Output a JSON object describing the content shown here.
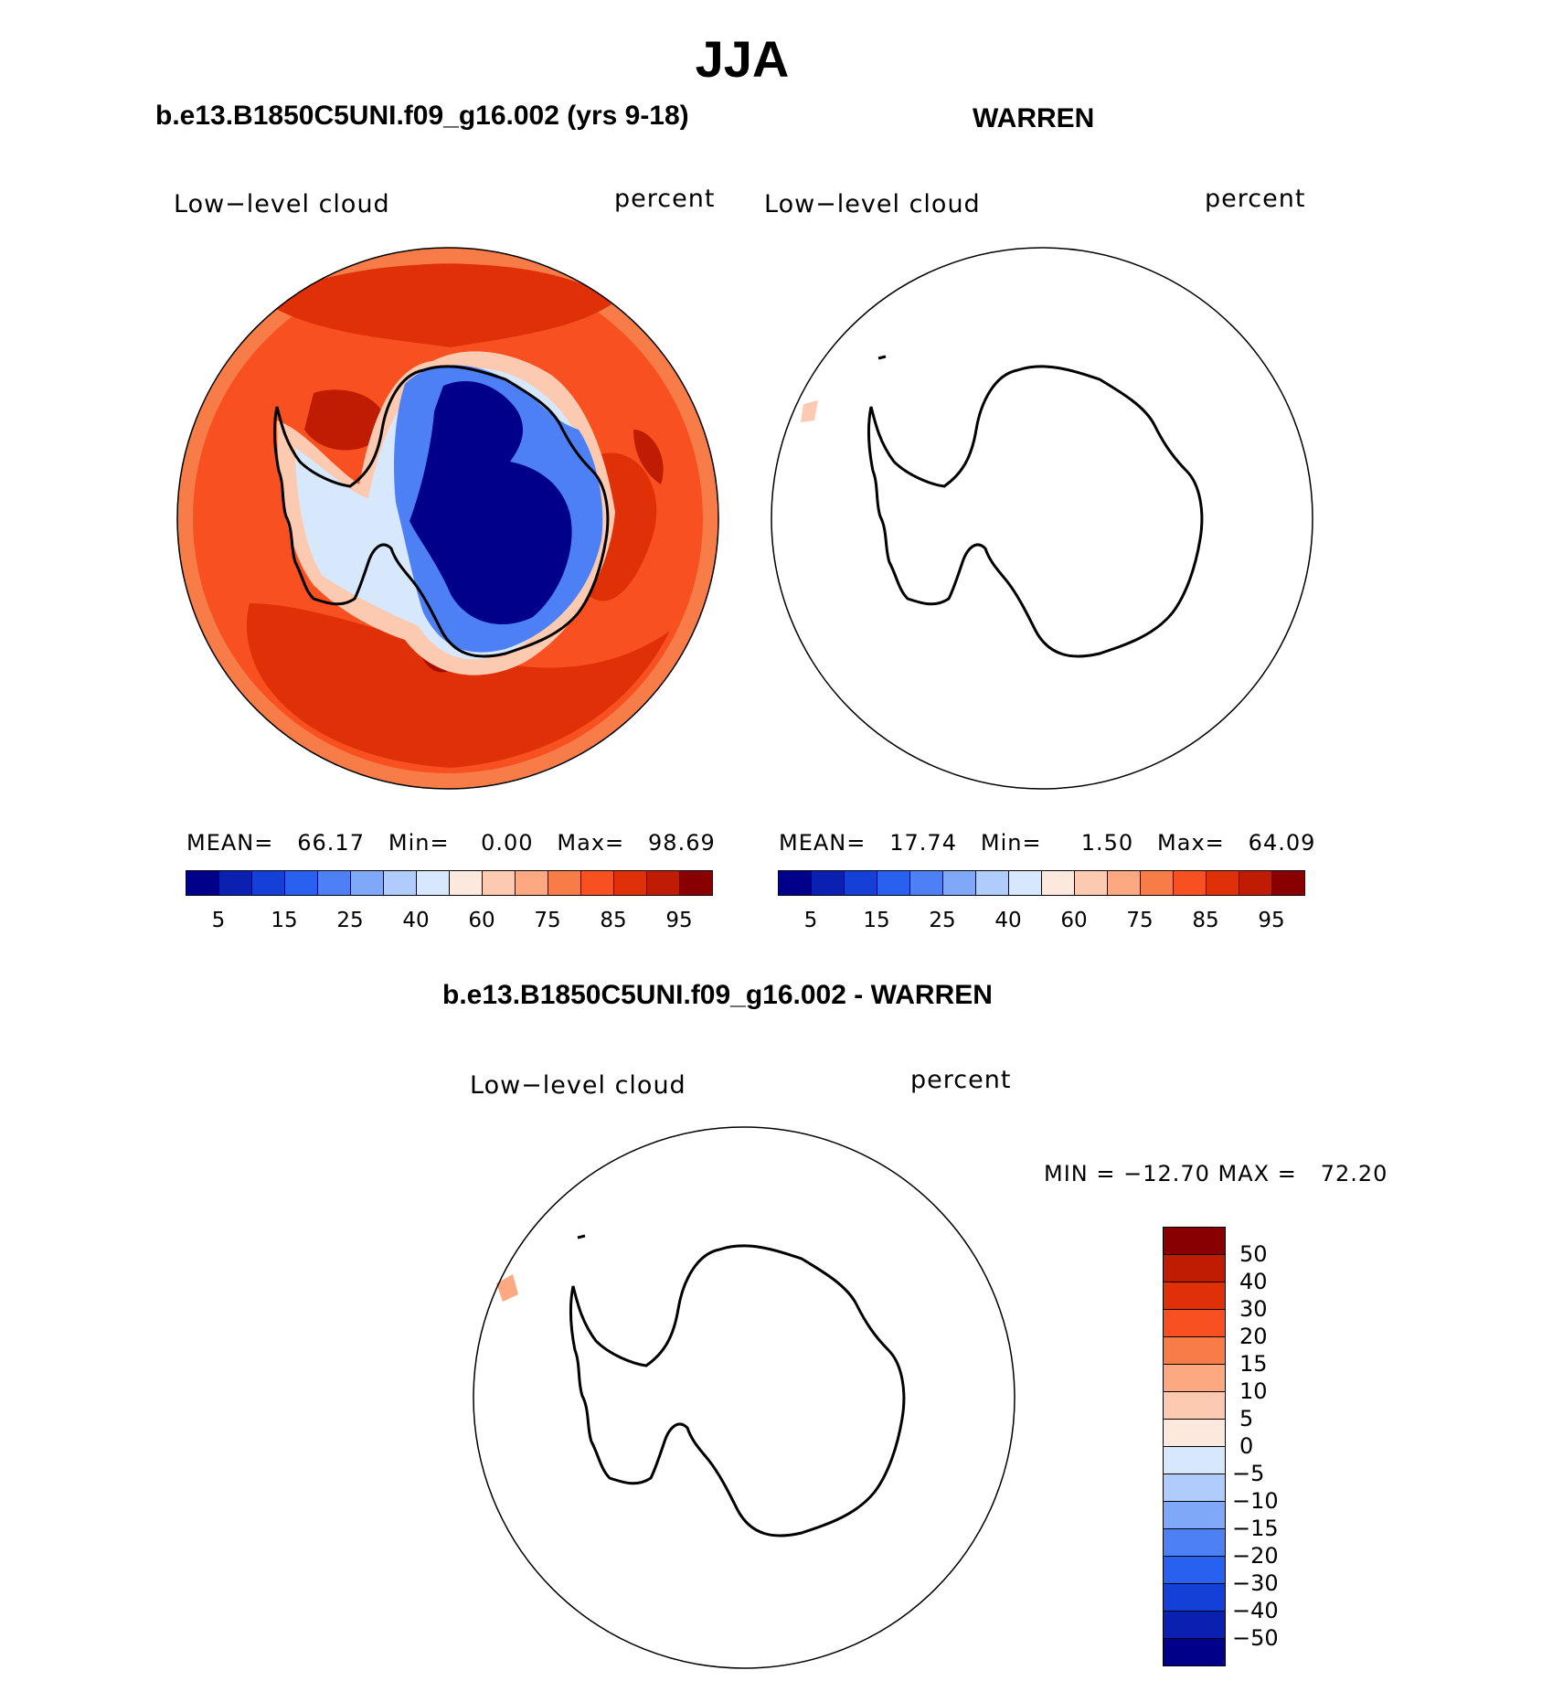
{
  "title": "JJA",
  "panels": [
    {
      "id": "model",
      "case_title": "b.e13.B1850C5UNI.f09_g16.002 (yrs 9-18)",
      "variable": "Low−level cloud",
      "units": "percent",
      "stats": {
        "mean_label": "MEAN=",
        "mean": "66.17",
        "min_label": "Min=",
        "min": "0.00",
        "max_label": "Max=",
        "max": "98.69"
      },
      "colorbar": {
        "colors": [
          "#00008b",
          "#0a20b0",
          "#1440d8",
          "#2860f0",
          "#4c80f4",
          "#80a8f8",
          "#b0ccfc",
          "#d8e8fc",
          "#fce8dc",
          "#fccab0",
          "#fca880",
          "#f87c48",
          "#f85020",
          "#e03008",
          "#c01c04",
          "#880000"
        ],
        "tick_labels": [
          "5",
          "15",
          "25",
          "40",
          "60",
          "75",
          "85",
          "95"
        ]
      }
    },
    {
      "id": "obs",
      "case_title": "WARREN",
      "variable": "Low−level cloud",
      "units": "percent",
      "stats": {
        "mean_label": "MEAN=",
        "mean": "17.74",
        "min_label": "Min=",
        "min": "1.50",
        "max_label": "Max=",
        "max": "64.09"
      },
      "colorbar": {
        "colors": [
          "#00008b",
          "#0a20b0",
          "#1440d8",
          "#2860f0",
          "#4c80f4",
          "#80a8f8",
          "#b0ccfc",
          "#d8e8fc",
          "#fce8dc",
          "#fccab0",
          "#fca880",
          "#f87c48",
          "#f85020",
          "#e03008",
          "#c01c04",
          "#880000"
        ],
        "tick_labels": [
          "5",
          "15",
          "25",
          "40",
          "60",
          "75",
          "85",
          "95"
        ]
      }
    }
  ],
  "difference": {
    "title": "b.e13.B1850C5UNI.f09_g16.002 - WARREN",
    "variable": "Low−level cloud",
    "units": "percent",
    "minmax_text": "MIN = −12.70 MAX =   72.20",
    "colorbar": {
      "colors_top_to_bottom": [
        "#880000",
        "#c01c04",
        "#e03008",
        "#f85020",
        "#f87c48",
        "#fca880",
        "#fccab0",
        "#fce8dc",
        "#d8e8fc",
        "#b0ccfc",
        "#80a8f8",
        "#4c80f4",
        "#2860f0",
        "#1440d8",
        "#0a20b0",
        "#00008b"
      ],
      "tick_labels": [
        "50",
        "40",
        "30",
        "20",
        "15",
        "10",
        "5",
        "0",
        "−5",
        "−10",
        "−15",
        "−20",
        "−30",
        "−40",
        "−50"
      ]
    }
  }
}
